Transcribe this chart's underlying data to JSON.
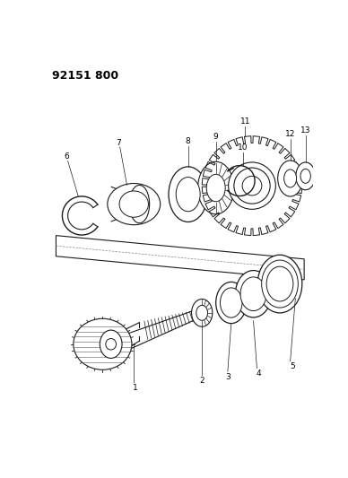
{
  "title": "92151 800",
  "bg_color": "#ffffff",
  "line_color": "#1a1a1a",
  "title_fontsize": 9,
  "fig_width": 3.88,
  "fig_height": 5.33,
  "dpi": 100,
  "label_fs": 6.5
}
